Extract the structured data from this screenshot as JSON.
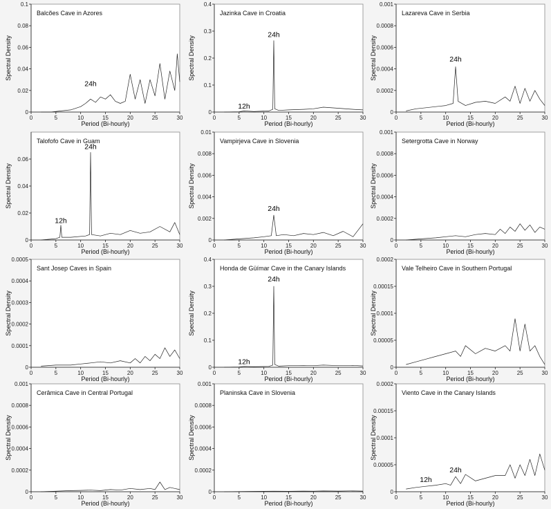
{
  "chart_data": [
    {
      "type": "line",
      "title": "Balcões Cave in Azores",
      "xlabel": "Period (Bi-hourly)",
      "ylabel": "Spectral Density",
      "xlim": [
        0,
        30
      ],
      "ylim": [
        0,
        0.1
      ],
      "xticks": [
        "0",
        "5",
        "10",
        "15",
        "20",
        "25",
        "30"
      ],
      "yticks": [
        "0",
        "0.02",
        "0.04",
        "0.06",
        "0.08",
        "0.1"
      ],
      "annotations": [
        {
          "text": "24h",
          "x": 12,
          "y": 0.022
        }
      ],
      "series": [
        {
          "x": [
            2,
            4,
            6,
            8,
            10,
            11,
            12,
            13,
            14,
            15,
            16,
            17,
            18,
            19,
            20,
            21,
            22,
            23,
            24,
            25,
            26,
            27,
            28,
            29,
            29.5,
            30
          ],
          "y": [
            0,
            0,
            0.001,
            0.002,
            0.005,
            0.008,
            0.012,
            0.009,
            0.014,
            0.012,
            0.016,
            0.01,
            0.008,
            0.01,
            0.035,
            0.012,
            0.03,
            0.008,
            0.03,
            0.015,
            0.045,
            0.012,
            0.038,
            0.02,
            0.054,
            0.028
          ]
        }
      ]
    },
    {
      "type": "line",
      "title": "Jazinka Cave in Croatia",
      "xlabel": "Period (Bi-hourly)",
      "ylabel": "Spectral Density",
      "xlim": [
        0,
        30
      ],
      "ylim": [
        0,
        0.4
      ],
      "xticks": [
        "0",
        "5",
        "10",
        "15",
        "20",
        "25",
        "30"
      ],
      "yticks": [
        "0",
        "0.1",
        "0.2",
        "0.3",
        "0.4"
      ],
      "annotations": [
        {
          "text": "24h",
          "x": 12,
          "y": 0.27
        },
        {
          "text": "12h",
          "x": 6,
          "y": 0.005
        }
      ],
      "series": [
        {
          "x": [
            2,
            5,
            6,
            8,
            11,
            11.8,
            12,
            12.2,
            13,
            15,
            18,
            20,
            22,
            25,
            28,
            30
          ],
          "y": [
            0,
            0.001,
            0.004,
            0.002,
            0.004,
            0.01,
            0.265,
            0.012,
            0.006,
            0.008,
            0.01,
            0.012,
            0.018,
            0.014,
            0.01,
            0.008
          ]
        }
      ]
    },
    {
      "type": "line",
      "title": "Lazareva Cave in Serbia",
      "xlabel": "Period (Bi-hourly)",
      "ylabel": "Spectral Density",
      "xlim": [
        0,
        30
      ],
      "ylim": [
        0,
        0.001
      ],
      "xticks": [
        "0",
        "5",
        "10",
        "15",
        "20",
        "25",
        "30"
      ],
      "yticks": [
        "0",
        "0.0002",
        "0.0004",
        "0.0006",
        "0.0008",
        "0.001"
      ],
      "annotations": [
        {
          "text": "24h",
          "x": 12,
          "y": 0.00045
        }
      ],
      "series": [
        {
          "x": [
            2,
            4,
            6,
            8,
            10,
            11.5,
            12,
            12.5,
            14,
            16,
            18,
            20,
            22,
            23,
            24,
            25,
            26,
            27,
            28,
            29,
            30
          ],
          "y": [
            1e-05,
            3e-05,
            4e-05,
            5e-05,
            6e-05,
            8e-05,
            0.00042,
            0.0001,
            6e-05,
            9e-05,
            0.0001,
            8e-05,
            0.00014,
            0.0001,
            0.00024,
            8e-05,
            0.00022,
            0.0001,
            0.0002,
            0.00012,
            6e-05
          ]
        }
      ]
    },
    {
      "type": "line",
      "title": "Talofofo Cave in Guam",
      "xlabel": "Period (Bi-hourly)",
      "ylabel": "Spectral Density",
      "xlim": [
        0,
        30
      ],
      "ylim": [
        0,
        0.08
      ],
      "xticks": [
        "0",
        "5",
        "10",
        "15",
        "20",
        "25",
        "30"
      ],
      "yticks": [
        "0",
        "0.02",
        "0.04",
        "0.06"
      ],
      "annotations": [
        {
          "text": "24h",
          "x": 12,
          "y": 0.066
        },
        {
          "text": "12h",
          "x": 6,
          "y": 0.011
        }
      ],
      "series": [
        {
          "x": [
            2,
            5,
            5.8,
            6,
            6.2,
            8,
            11,
            11.8,
            12,
            12.2,
            14,
            16,
            18,
            20,
            22,
            24,
            26,
            28,
            29,
            30
          ],
          "y": [
            0,
            0.001,
            0.002,
            0.011,
            0.002,
            0.002,
            0.003,
            0.004,
            0.065,
            0.004,
            0.003,
            0.005,
            0.004,
            0.007,
            0.005,
            0.006,
            0.01,
            0.006,
            0.013,
            0.004
          ]
        }
      ]
    },
    {
      "type": "line",
      "title": "Vampirjeva Cave in Slovenia",
      "xlabel": "Period (Bi-hourly)",
      "ylabel": "Spectral Density",
      "xlim": [
        0,
        30
      ],
      "ylim": [
        0,
        0.01
      ],
      "xticks": [
        "0",
        "5",
        "10",
        "15",
        "20",
        "25",
        "30"
      ],
      "yticks": [
        "0",
        "0.002",
        "0.004",
        "0.006",
        "0.008",
        "0.01"
      ],
      "annotations": [
        {
          "text": "24h",
          "x": 12,
          "y": 0.0025
        }
      ],
      "series": [
        {
          "x": [
            2,
            5,
            8,
            10,
            11.5,
            12,
            12.5,
            14,
            16,
            18,
            20,
            22,
            24,
            26,
            28,
            29.5,
            30
          ],
          "y": [
            0,
            0.0001,
            0.0002,
            0.0003,
            0.0004,
            0.0023,
            0.0004,
            0.0005,
            0.0004,
            0.0006,
            0.0005,
            0.0007,
            0.0004,
            0.0008,
            0.0003,
            0.0012,
            0.0015
          ]
        }
      ]
    },
    {
      "type": "line",
      "title": "Setergrotta Cave in Norway",
      "xlabel": "Period (Bi-hourly)",
      "ylabel": "Spectral Density",
      "xlim": [
        0,
        30
      ],
      "ylim": [
        0,
        0.001
      ],
      "xticks": [
        "0",
        "5",
        "10",
        "15",
        "20",
        "25",
        "30"
      ],
      "yticks": [
        "0",
        "0.0002",
        "0.0004",
        "0.0006",
        "0.0008",
        "0.001"
      ],
      "annotations": [],
      "series": [
        {
          "x": [
            2,
            5,
            8,
            10,
            12,
            14,
            16,
            18,
            20,
            21,
            22,
            23,
            24,
            25,
            26,
            27,
            28,
            29,
            30
          ],
          "y": [
            0,
            1e-05,
            2e-05,
            3e-05,
            4e-05,
            3e-05,
            5e-05,
            6e-05,
            5e-05,
            0.0001,
            6e-05,
            0.00012,
            8e-05,
            0.00015,
            9e-05,
            0.00014,
            7e-05,
            0.00012,
            0.0001
          ]
        }
      ]
    },
    {
      "type": "line",
      "title": "Sant Josep Caves in Spain",
      "xlabel": "Period (Bi-hourly)",
      "ylabel": "Spectral Density",
      "xlim": [
        0,
        30
      ],
      "ylim": [
        0,
        0.0005
      ],
      "xticks": [
        "0",
        "5",
        "10",
        "15",
        "20",
        "25",
        "30"
      ],
      "yticks": [
        "0",
        "0.0001",
        "0.0002",
        "0.0003",
        "0.0004",
        "0.0005"
      ],
      "annotations": [],
      "series": [
        {
          "x": [
            2,
            5,
            8,
            10,
            12,
            14,
            16,
            18,
            20,
            21,
            22,
            23,
            24,
            25,
            26,
            27,
            28,
            29,
            30
          ],
          "y": [
            5e-06,
            1e-05,
            1e-05,
            1.5e-05,
            2e-05,
            2.5e-05,
            2e-05,
            3e-05,
            2e-05,
            4e-05,
            2e-05,
            5e-05,
            3e-05,
            6e-05,
            4e-05,
            9e-05,
            5e-05,
            8e-05,
            4e-05
          ]
        }
      ]
    },
    {
      "type": "line",
      "title": "Honda de Güímar Cave in the Canary Islands",
      "xlabel": "Period (Bi-hourly)",
      "ylabel": "Spectral Density",
      "xlim": [
        0,
        30
      ],
      "ylim": [
        0,
        0.4
      ],
      "xticks": [
        "0",
        "5",
        "10",
        "15",
        "20",
        "25",
        "30"
      ],
      "yticks": [
        "0",
        "0.1",
        "0.2",
        "0.3",
        "0.4"
      ],
      "annotations": [
        {
          "text": "24h",
          "x": 12,
          "y": 0.31
        },
        {
          "text": "12h",
          "x": 6,
          "y": 0.004
        }
      ],
      "series": [
        {
          "x": [
            2,
            5,
            6,
            8,
            11,
            11.8,
            12,
            12.2,
            13,
            15,
            18,
            20,
            22,
            25,
            28,
            30
          ],
          "y": [
            0,
            0.001,
            0.003,
            0.002,
            0.003,
            0.008,
            0.3,
            0.01,
            0.004,
            0.006,
            0.007,
            0.006,
            0.008,
            0.006,
            0.007,
            0.005
          ]
        }
      ]
    },
    {
      "type": "line",
      "title": "Vale Telheiro Cave in Southern Portugal",
      "xlabel": "Period (Bi-hourly)",
      "ylabel": "Spectral Density",
      "xlim": [
        0,
        30
      ],
      "ylim": [
        0,
        0.0002
      ],
      "xticks": [
        "0",
        "5",
        "10",
        "15",
        "20",
        "25",
        "30"
      ],
      "yticks": [
        "0",
        "0.00005",
        "0.0001",
        "0.00015",
        "0.0002"
      ],
      "annotations": [],
      "series": [
        {
          "x": [
            2,
            4,
            6,
            8,
            10,
            12,
            13,
            14,
            16,
            18,
            20,
            22,
            23,
            24,
            25,
            26,
            27,
            28,
            29,
            30
          ],
          "y": [
            5e-06,
            1e-05,
            1.5e-05,
            2e-05,
            2.5e-05,
            3e-05,
            2e-05,
            4e-05,
            2.5e-05,
            3.5e-05,
            3e-05,
            4e-05,
            3e-05,
            9e-05,
            3e-05,
            8e-05,
            3e-05,
            4e-05,
            2e-05,
            5e-06
          ]
        }
      ]
    },
    {
      "type": "line",
      "title": "Cerâmica Cave in Central Portugal",
      "xlabel": "Period (Bi-hourly)",
      "ylabel": "Spectral Density",
      "xlim": [
        0,
        30
      ],
      "ylim": [
        0,
        0.001
      ],
      "xticks": [
        "0",
        "5",
        "10",
        "15",
        "20",
        "25",
        "30"
      ],
      "yticks": [
        "0",
        "0.0002",
        "0.0004",
        "0.0006",
        "0.0008",
        "0.001"
      ],
      "annotations": [],
      "series": [
        {
          "x": [
            2,
            5,
            8,
            10,
            12,
            14,
            16,
            18,
            20,
            22,
            24,
            25,
            26,
            27,
            28,
            30
          ],
          "y": [
            0,
            5e-06,
            1e-05,
            1.2e-05,
            1.5e-05,
            1e-05,
            2e-05,
            1.5e-05,
            3e-05,
            2e-05,
            3e-05,
            2e-05,
            9e-05,
            2e-05,
            4e-05,
            2e-05
          ]
        }
      ]
    },
    {
      "type": "line",
      "title": "Planinska Cave in Slovenia",
      "xlabel": "Period (Bi-hourly)",
      "ylabel": "Spectral Density",
      "xlim": [
        0,
        30
      ],
      "ylim": [
        0,
        0.001
      ],
      "xticks": [
        "0",
        "5",
        "10",
        "15",
        "20",
        "25",
        "30"
      ],
      "yticks": [
        "0",
        "0.0002",
        "0.0004",
        "0.0006",
        "0.0008",
        "0.001"
      ],
      "annotations": [],
      "series": [
        {
          "x": [
            2,
            5,
            8,
            10,
            12,
            15,
            18,
            20,
            22,
            25,
            28,
            30
          ],
          "y": [
            0,
            2e-06,
            3e-06,
            4e-06,
            5e-06,
            4e-06,
            6e-06,
            5e-06,
            7e-06,
            6e-06,
            8e-06,
            6e-06
          ]
        }
      ]
    },
    {
      "type": "line",
      "title": "Viento Cave in the Canary Islands",
      "xlabel": "Period (Bi-hourly)",
      "ylabel": "Spectral Density",
      "xlim": [
        0,
        30
      ],
      "ylim": [
        0,
        0.0002
      ],
      "xticks": [
        "0",
        "5",
        "10",
        "15",
        "20",
        "25",
        "30"
      ],
      "yticks": [
        "0",
        "0.00005",
        "0.0001",
        "0.00015",
        "0.0002"
      ],
      "annotations": [
        {
          "text": "24h",
          "x": 12,
          "y": 3.2e-05
        },
        {
          "text": "12h",
          "x": 6,
          "y": 1.4e-05
        }
      ],
      "series": [
        {
          "x": [
            2,
            4,
            6,
            8,
            10,
            11,
            12,
            13,
            14,
            16,
            18,
            20,
            22,
            23,
            24,
            25,
            26,
            27,
            28,
            29,
            30
          ],
          "y": [
            5e-06,
            8e-06,
            1e-05,
            1.2e-05,
            1.5e-05,
            1.2e-05,
            2.8e-05,
            1.5e-05,
            3.2e-05,
            2e-05,
            2.5e-05,
            3e-05,
            3e-05,
            5e-05,
            2.5e-05,
            5e-05,
            3e-05,
            6e-05,
            3e-05,
            7e-05,
            4e-05
          ]
        }
      ]
    }
  ]
}
